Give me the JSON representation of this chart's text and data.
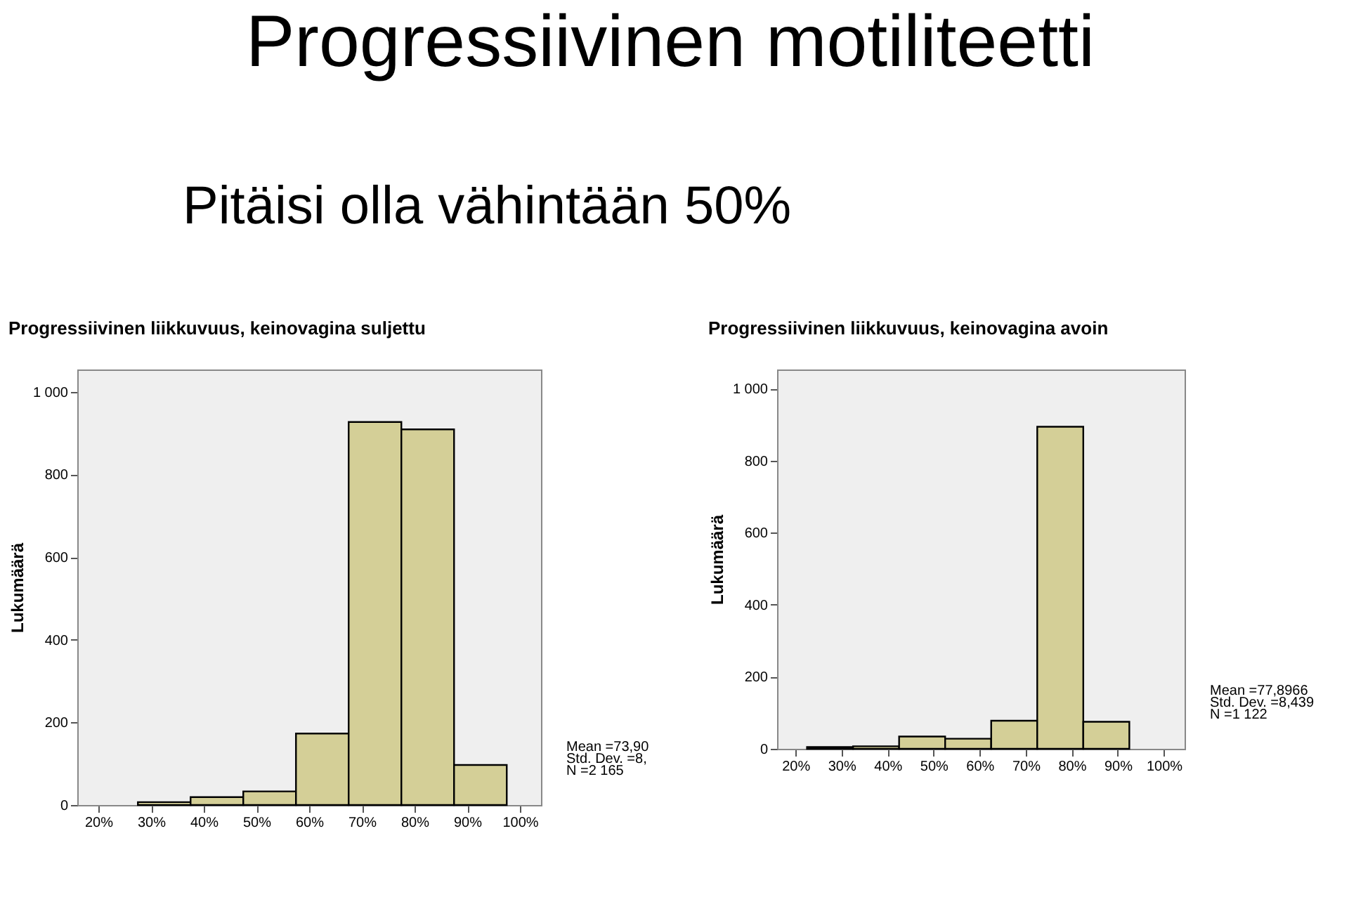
{
  "chart_data": [
    {
      "type": "other",
      "title": "Progressiivinen motiliteetti",
      "annotations": [
        "Pitäisi olla vähintään 50%"
      ]
    },
    {
      "type": "histogram",
      "title": "Progressiivinen liikkuvuus, keinovagina suljettu",
      "ylabel": "Lukumäärä",
      "color": "#d4cf97",
      "bins": [
        27.5,
        37.5,
        47.5,
        57.5,
        67.5,
        77.5,
        87.5,
        97.5
      ],
      "values": [
        7,
        19,
        33,
        173,
        927,
        909,
        97
      ],
      "xlim": [
        16,
        104
      ],
      "ylim": [
        0,
        1054
      ],
      "xticks": [
        {
          "value": 20,
          "label": "20%"
        },
        {
          "value": 30,
          "label": "30%"
        },
        {
          "value": 40,
          "label": "40%"
        },
        {
          "value": 50,
          "label": "50%"
        },
        {
          "value": 60,
          "label": "60%"
        },
        {
          "value": 70,
          "label": "70%"
        },
        {
          "value": 80,
          "label": "80%"
        },
        {
          "value": 90,
          "label": "90%"
        },
        {
          "value": 100,
          "label": "100%"
        }
      ],
      "yticks": [
        0,
        200,
        400,
        600,
        800,
        {
          "value": 1000,
          "label": "1 000"
        }
      ],
      "grid": false,
      "annotations": [
        "Mean =73,90",
        "Std. Dev. =8,",
        "N =2 165"
      ]
    },
    {
      "type": "histogram",
      "title": "Progressiivinen liikkuvuus, keinovagina avoin",
      "ylabel": "Lukumäärä",
      "color": "#d4cf97",
      "bins": [
        22.5,
        32.5,
        42.5,
        52.5,
        62.5,
        72.5,
        82.5,
        92.5
      ],
      "values": [
        5,
        7,
        34,
        28,
        78,
        894,
        75
      ],
      "xlim": [
        16,
        104.5
      ],
      "ylim": [
        0,
        1053
      ],
      "xticks": [
        {
          "value": 20,
          "label": "20%"
        },
        {
          "value": 30,
          "label": "30%"
        },
        {
          "value": 40,
          "label": "40%"
        },
        {
          "value": 50,
          "label": "50%"
        },
        {
          "value": 60,
          "label": "60%"
        },
        {
          "value": 70,
          "label": "70%"
        },
        {
          "value": 80,
          "label": "80%"
        },
        {
          "value": 90,
          "label": "90%"
        },
        {
          "value": 100,
          "label": "100%"
        }
      ],
      "yticks": [
        0,
        200,
        400,
        600,
        800,
        {
          "value": 1000,
          "label": "1 000"
        }
      ],
      "grid": false,
      "annotations": [
        "Mean =77,8966",
        "Std. Dev. =8,439",
        "N =1 122"
      ]
    }
  ]
}
